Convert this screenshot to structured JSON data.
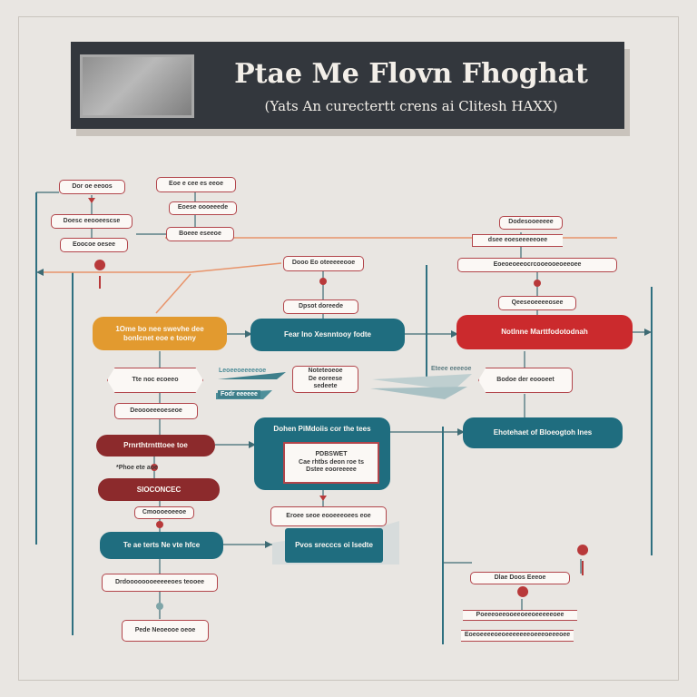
{
  "banner": {
    "title": "Ptae Me Flovn Fhoghat",
    "subtitle": "(Yats An curectertt crens ai Clitesh HAXX)"
  },
  "nodes": {
    "orange": [
      "1Ome bo nee swevhe dee",
      "bonlcnet eoe e toony"
    ],
    "teal_center_top": "Fear Ino Xesnntooy fodte",
    "red_right": "Notlnne Marttfodotodnah",
    "teal_middle": "Dohen PiMdoiis cor the tees",
    "teal_right": "Ehotehaet of Bloeogtoh lnes",
    "maroon_top": "Prnrthtrntttoee toe",
    "maroon_bottom": "SIOCONCEC",
    "teal_bottom_left": "Te ae terts Ne vte hfce",
    "teal_bottom_center": "Pvos srecccs oi lsedte"
  },
  "labels": {
    "tl1": "Dor oe eeoos",
    "tl2": "Doesc eeooeescse",
    "tl3": "Eoocoe oesee",
    "tc1": "Eoe e cee es eeoe",
    "tc2": "Eoese oooeeede",
    "tc3": "Boeee eseeoe",
    "mc1": "Dooo Eo oteeeeeooe",
    "mc2": "Dpsot doreede",
    "tr1": "Dodesooeeeee",
    "tr2": "dsee eoeseeeeeoee",
    "tr3": "Eoeoeoeeocrcooeooeoeeoee",
    "tr4": "Qeeseoeeeeosee",
    "arrow_left": "Tte noc ecoeeo",
    "arrow_right": "Bodoe der eoooeet",
    "center_note": [
      "Noteteoeoe",
      "De eoreese sedeete"
    ],
    "below_orange": "Deoooeeeoeseoe",
    "between_maroon": "*Phoe ete aoe",
    "inner_box": [
      "PDBSWET",
      "Cae rhtbs deon roe ts",
      "Dstee eooreeeee"
    ],
    "above_bottom": "Cmoooeoeeoe",
    "bottom_center_above": "Eroee seoe eooeeeoees eoe",
    "bottom_left1": "Drdoooooooeeeeeoes teooee",
    "bottom_left2": "Pede Neoeooe oeoe",
    "br1": "Dlae Doos Eeeoe",
    "br2": "Poeeeoeeooeeoeeoeeeeeoee",
    "br3": "Eoeoeeeeoeoeeeeeeeoeeeoeeeoee"
  },
  "tags": {
    "tag1": "Leoeeoeeeeeoe",
    "tag2": "Eteee eeeeoe",
    "tag3": "Fodr eeeeee"
  },
  "colors": {
    "teal": "#1f6d7f",
    "orange": "#e29a2f",
    "red": "#cb2a2d",
    "maroon": "#8c2a2c",
    "banner": "#33373d",
    "background": "#e9e6e2"
  }
}
